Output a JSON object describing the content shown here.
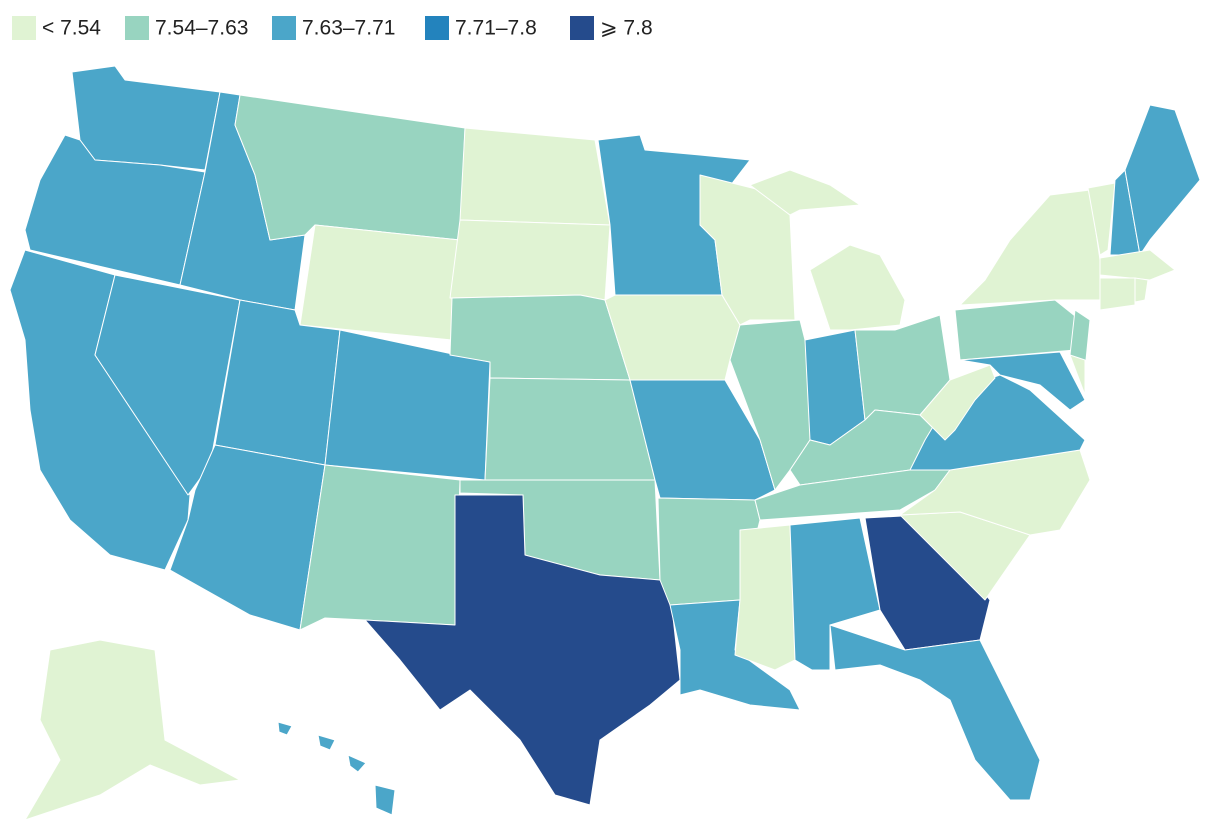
{
  "map": {
    "legend": [
      {
        "label": "< 7.54",
        "color": "#e0f3d3"
      },
      {
        "label": "7.54–7.63",
        "color": "#98d4c0"
      },
      {
        "label": "7.63–7.71",
        "color": "#4ba6c9"
      },
      {
        "label": "7.71–7.8",
        "color": "#2383bd"
      },
      {
        "label": "⩾ 7.8",
        "color": "#254b8c"
      }
    ],
    "region_colors": [
      "#4ba6c9",
      "#4ba6c9",
      "#4ba6c9",
      "#4ba6c9",
      "#4ba6c9",
      "#98d4c0",
      "#e0f3d3",
      "#4ba6c9",
      "#4ba6c9",
      "#4ba6c9",
      "#98d4c0",
      "#e0f3d3",
      "#e0f3d3",
      "#98d4c0",
      "#98d4c0",
      "#98d4c0",
      "#254b8c",
      "#4ba6c9",
      "#e0f3d3",
      "#4ba6c9",
      "#98d4c0",
      "#4ba6c9",
      "#e0f3d3",
      "#98d4c0",
      "#e0f3d3",
      "#e0f3d3",
      "#4ba6c9",
      "#98d4c0",
      "#98d4c0",
      "#98d4c0",
      "#e0f3d3",
      "#4ba6c9",
      "#254b8c",
      "#4ba6c9",
      "#e0f3d3",
      "#e0f3d3",
      "#4ba6c9",
      "#e0f3d3",
      "#98d4c0",
      "#e0f3d3",
      "#98d4c0",
      "#4ba6c9",
      "#e0f3d3",
      "#e0f3d3",
      "#4ba6c9",
      "#4ba6c9",
      "#e0f3d3",
      "#e0f3d3",
      "#e0f3d3",
      "#e0f3d3",
      "#4ba6c9",
      "#4ba6c9",
      "#4ba6c9",
      "#4ba6c9"
    ]
  }
}
